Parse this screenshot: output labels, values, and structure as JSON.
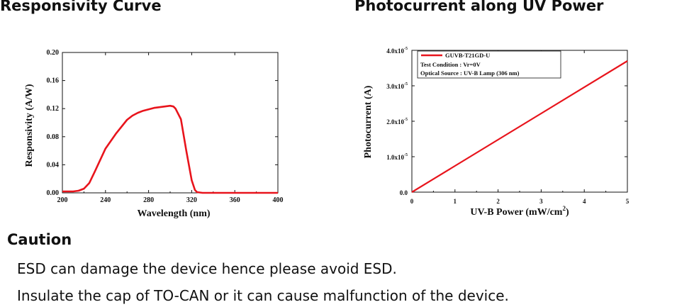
{
  "headings": {
    "left_title": "Responsivity Curve",
    "right_title": "Photocurrent along UV Power",
    "caution_title": "Caution"
  },
  "caution": {
    "items": [
      "ESD can damage the device hence please avoid ESD.",
      "Insulate the cap of TO-CAN or it can cause malfunction of the device."
    ]
  },
  "chart_data": [
    {
      "type": "line",
      "title": "Responsivity Curve",
      "xlabel": "Wavelength (nm)",
      "ylabel": "Responsivity (A/W)",
      "xlim": [
        200,
        400
      ],
      "ylim": [
        0,
        0.2
      ],
      "xticks": [
        "200",
        "240",
        "280",
        "320",
        "360",
        "400"
      ],
      "yticks": [
        "0.00",
        "0.04",
        "0.08",
        "0.12",
        "0.16",
        "0.20"
      ],
      "grid": false,
      "series": [
        {
          "color": "#e8141c",
          "x": [
            200,
            210,
            215,
            220,
            225,
            230,
            240,
            250,
            260,
            265,
            270,
            275,
            280,
            285,
            290,
            295,
            300,
            303,
            305,
            310,
            315,
            320,
            323,
            325,
            330,
            350,
            400
          ],
          "y": [
            0.002,
            0.002,
            0.003,
            0.006,
            0.014,
            0.03,
            0.063,
            0.085,
            0.104,
            0.11,
            0.114,
            0.117,
            0.119,
            0.121,
            0.122,
            0.123,
            0.124,
            0.123,
            0.12,
            0.105,
            0.06,
            0.018,
            0.004,
            0.001,
            0.0,
            0.0,
            0.0
          ]
        }
      ]
    },
    {
      "type": "line",
      "title": "Photocurrent along UV Power",
      "xlabel": "UV-B Power (mW/cm",
      "xlabel_sup": "2",
      "xlabel_end": ")",
      "ylabel": "Photocurrent (A)",
      "xlim": [
        0,
        5
      ],
      "ylim": [
        0,
        4e-05
      ],
      "xticks": [
        "0",
        "1",
        "2",
        "3",
        "4",
        "5"
      ],
      "ytick_values": [
        0,
        1e-05,
        2e-05,
        3e-05,
        4e-05
      ],
      "yticks": [
        {
          "base": "0.0",
          "exp": ""
        },
        {
          "base": "1.0x10",
          "exp": "-5"
        },
        {
          "base": "2.0x10",
          "exp": "-5"
        },
        {
          "base": "3.0x10",
          "exp": "-5"
        },
        {
          "base": "4.0x10",
          "exp": "-5"
        }
      ],
      "grid": false,
      "legend_position": "top-left",
      "series": [
        {
          "name": "GUVB-T21GD-U",
          "color": "#e8141c",
          "x": [
            0,
            5
          ],
          "y": [
            0,
            3.7e-05
          ]
        }
      ],
      "annotations": [
        "Test Condition : Vr=0V",
        "Optical Source : UV-B Lamp (306 nm)"
      ]
    }
  ]
}
